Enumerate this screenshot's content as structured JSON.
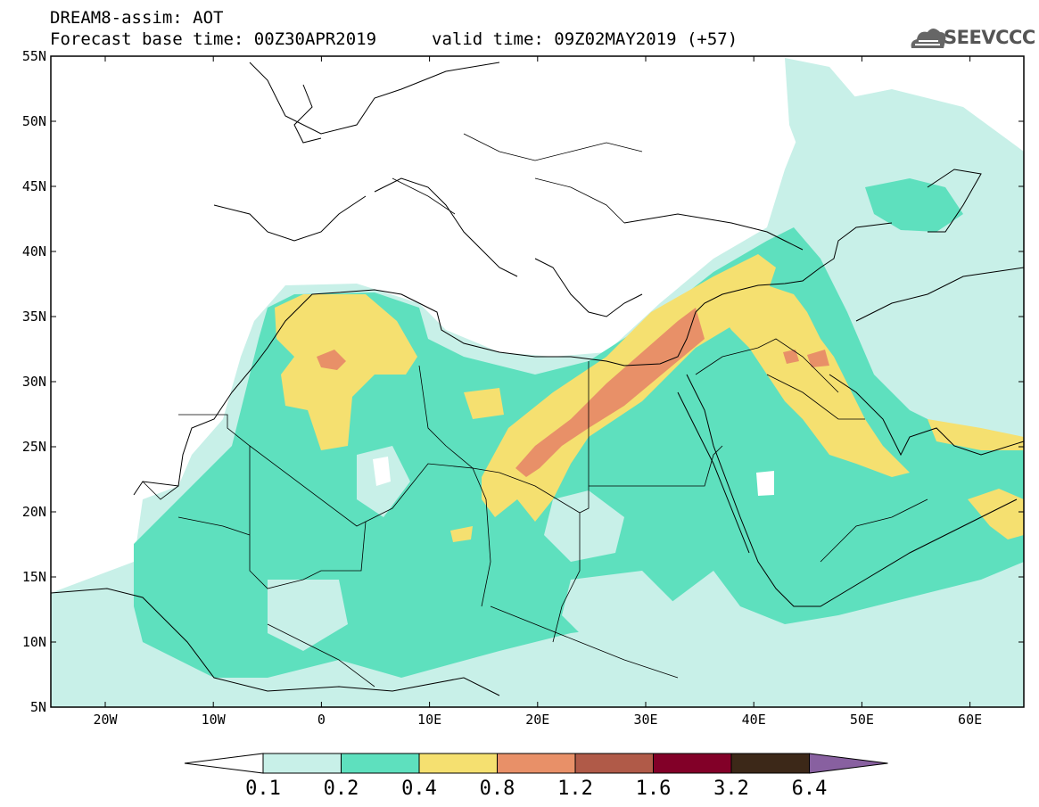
{
  "header": {
    "title_line1": "DREAM8-assim: AOT",
    "title_line2": "Forecast base time: 00Z30APR2019",
    "valid_time": "valid time: 09Z02MAY2019 (+57)",
    "logo_text": "SEEVCCC"
  },
  "map": {
    "lat_labels": [
      "55N",
      "50N",
      "45N",
      "40N",
      "35N",
      "30N",
      "25N",
      "20N",
      "15N",
      "10N",
      "5N"
    ],
    "lon_labels": [
      "20W",
      "10W",
      "0",
      "10E",
      "20E",
      "30E",
      "40E",
      "50E",
      "60E"
    ]
  },
  "colorbar": {
    "levels": [
      "0.1",
      "0.2",
      "0.4",
      "0.8",
      "1.2",
      "1.6",
      "3.2",
      "6.4"
    ],
    "colors": [
      "#ffffff",
      "#c8f0e8",
      "#5ee0be",
      "#f5e070",
      "#e89068",
      "#b05a48",
      "#820028",
      "#3c2818",
      "#8860a0"
    ]
  }
}
